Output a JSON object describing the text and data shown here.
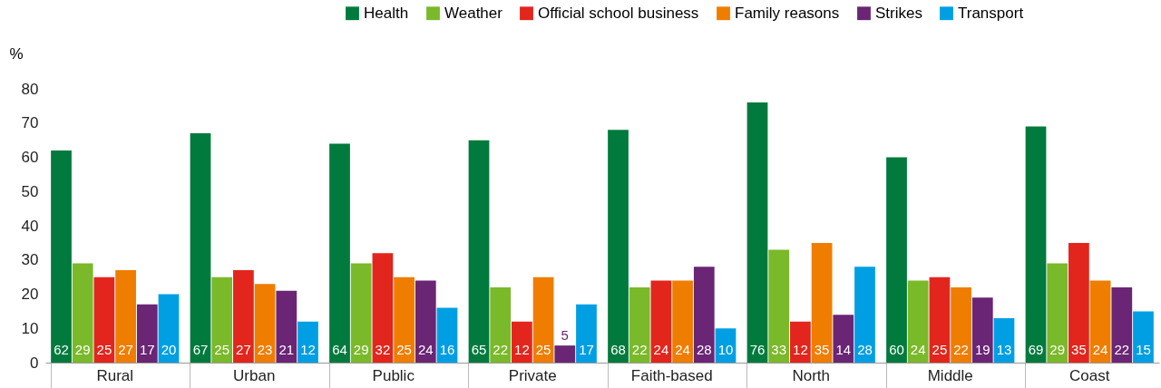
{
  "chart_data": {
    "type": "bar",
    "ylabel": "%",
    "categories": [
      "Rural",
      "Urban",
      "Public",
      "Private",
      "Faith-based",
      "North",
      "Middle",
      "Coast"
    ],
    "series": [
      {
        "name": "Health",
        "color": "#007a3d",
        "values": [
          62,
          67,
          64,
          65,
          68,
          76,
          60,
          69
        ]
      },
      {
        "name": "Weather",
        "color": "#7ab929",
        "values": [
          29,
          25,
          29,
          22,
          22,
          33,
          24,
          29
        ]
      },
      {
        "name": "Official school business",
        "color": "#e2261d",
        "values": [
          25,
          27,
          32,
          12,
          24,
          12,
          25,
          35
        ]
      },
      {
        "name": "Family reasons",
        "color": "#ef7d00",
        "values": [
          27,
          23,
          25,
          25,
          24,
          35,
          22,
          24
        ]
      },
      {
        "name": "Strikes",
        "color": "#6a2575",
        "values": [
          17,
          21,
          24,
          5,
          28,
          14,
          19,
          22
        ]
      },
      {
        "name": "Transport",
        "color": "#009fe3",
        "values": [
          20,
          12,
          16,
          17,
          10,
          28,
          13,
          15
        ]
      }
    ],
    "ylim": [
      0,
      80
    ],
    "yticks": [
      0,
      10,
      20,
      30,
      40,
      50,
      60,
      70,
      80
    ],
    "grid": false,
    "legend": "top right",
    "data_labels": true
  }
}
